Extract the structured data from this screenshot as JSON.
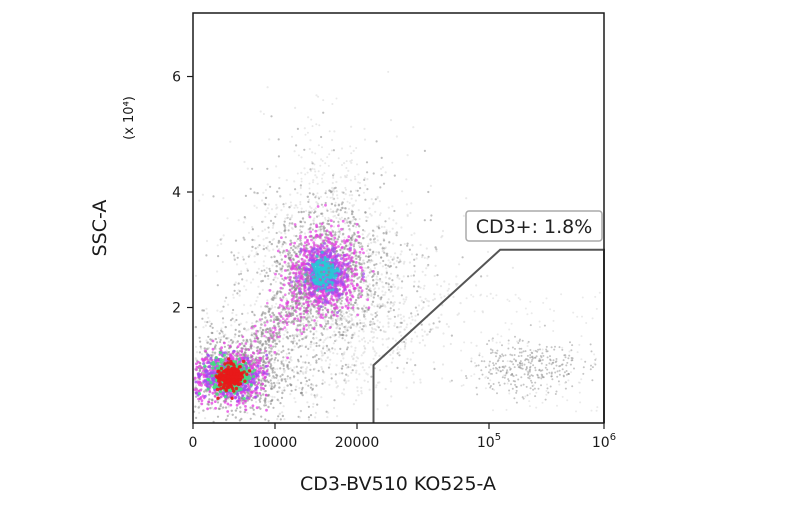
{
  "chart_data": {
    "type": "scatter",
    "subtype": "flow-cytometry density dot plot",
    "xlabel": "CD3-BV510 KO525-A",
    "ylabel": "SSC-A",
    "y_multiplier": "(x 10⁴)",
    "x_scale": "biexponential (linear then log)",
    "x_ticks": [
      {
        "label": "0",
        "value": 0
      },
      {
        "label": "10000",
        "value": 10000
      },
      {
        "label": "20000",
        "value": 20000
      },
      {
        "label": "10",
        "exp": "5",
        "value": 100000
      },
      {
        "label": "10",
        "exp": "6",
        "value": 1000000
      }
    ],
    "y_ticks": [
      {
        "label": "2",
        "value": 2
      },
      {
        "label": "4",
        "value": 4
      },
      {
        "label": "6",
        "value": 6
      }
    ],
    "ylim": [
      0,
      7.1
    ],
    "populations": [
      {
        "name": "low cluster",
        "x_center": 4500,
        "y_center": 0.8,
        "peak_density": "high (red)"
      },
      {
        "name": "mid cluster",
        "x_center": 16000,
        "y_center": 2.6,
        "peak_density": "medium (cyan/magenta)"
      },
      {
        "name": "CD3+ events",
        "x_center": 180000,
        "y_center": 0.95,
        "peak_density": "low (grey)"
      }
    ],
    "gate": {
      "label": "CD3+: 1.8%",
      "name": "CD3+",
      "percent": 1.8,
      "vertices": [
        [
          30000,
          0
        ],
        [
          30000,
          1.0
        ],
        [
          125000,
          3.0
        ],
        [
          1000000,
          3.0
        ],
        [
          1000000,
          0
        ]
      ]
    },
    "density_colors": [
      "#d9d9d9",
      "#8c8c8c",
      "#e43ee0",
      "#a24cf0",
      "#27c9d6",
      "#3fe07c",
      "#e81919"
    ],
    "grid": false
  }
}
